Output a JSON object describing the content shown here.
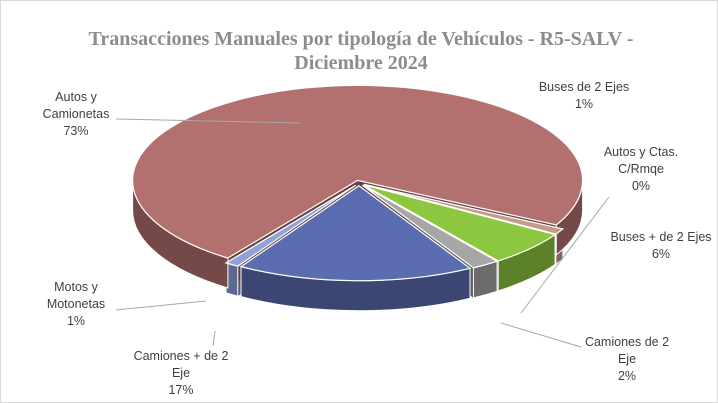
{
  "chart_data": {
    "type": "pie3d",
    "title": "Transacciones Manuales por tipología de Vehículos - R5-SALV -      Diciembre 2024",
    "categories": [
      "Buses de 2 Ejes",
      "Autos y Ctas. C/Rmqe",
      "Buses + de 2 Ejes",
      "Camiones de 2 Eje",
      "Camiones + de 2 Eje",
      "Motos y Motonetas",
      "Autos y Camionetas"
    ],
    "values": [
      1,
      0,
      6,
      2,
      17,
      1,
      73
    ],
    "value_labels": [
      "1%",
      "0%",
      "6%",
      "2%",
      "17%",
      "1%",
      "73%"
    ],
    "colors": [
      "#c79b8a",
      "#9e6a8a",
      "#8dc63f",
      "#a6a6a6",
      "#5a6db0",
      "#8fa2da",
      "#b2706f"
    ]
  }
}
